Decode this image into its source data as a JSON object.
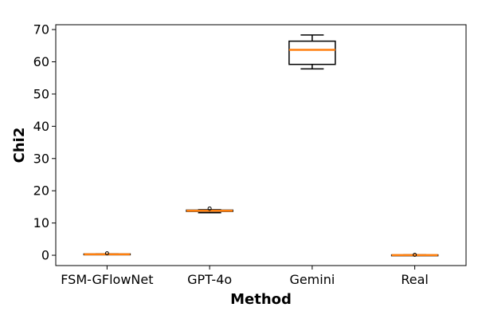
{
  "chart_data": {
    "type": "box",
    "title": "",
    "xlabel": "Method",
    "ylabel": "Chi2",
    "ylim": [
      -3.2,
      71.5
    ],
    "yticks": [
      0,
      10,
      20,
      30,
      40,
      50,
      60,
      70
    ],
    "grid": false,
    "categories": [
      "FSM-GFlowNet",
      "GPT-4o",
      "Gemini",
      "Real"
    ],
    "boxes": [
      {
        "category": "FSM-GFlowNet",
        "whisker_low": 0.2,
        "q1": 0.25,
        "median": 0.3,
        "q3": 0.4,
        "whisker_high": 0.45,
        "outliers": [
          0.6
        ]
      },
      {
        "category": "GPT-4o",
        "whisker_low": 13.2,
        "q1": 13.6,
        "median": 13.8,
        "q3": 14.0,
        "whisker_high": 14.1,
        "outliers": [
          14.5
        ]
      },
      {
        "category": "Gemini",
        "whisker_low": 57.8,
        "q1": 59.2,
        "median": 63.7,
        "q3": 66.4,
        "whisker_high": 68.3,
        "outliers": []
      },
      {
        "category": "Real",
        "whisker_low": -0.05,
        "q1": 0.0,
        "median": 0.05,
        "q3": 0.1,
        "whisker_high": 0.15,
        "outliers": [
          0.15
        ]
      }
    ],
    "colors": {
      "box": "#000000",
      "median": "#ff7f0e"
    }
  }
}
